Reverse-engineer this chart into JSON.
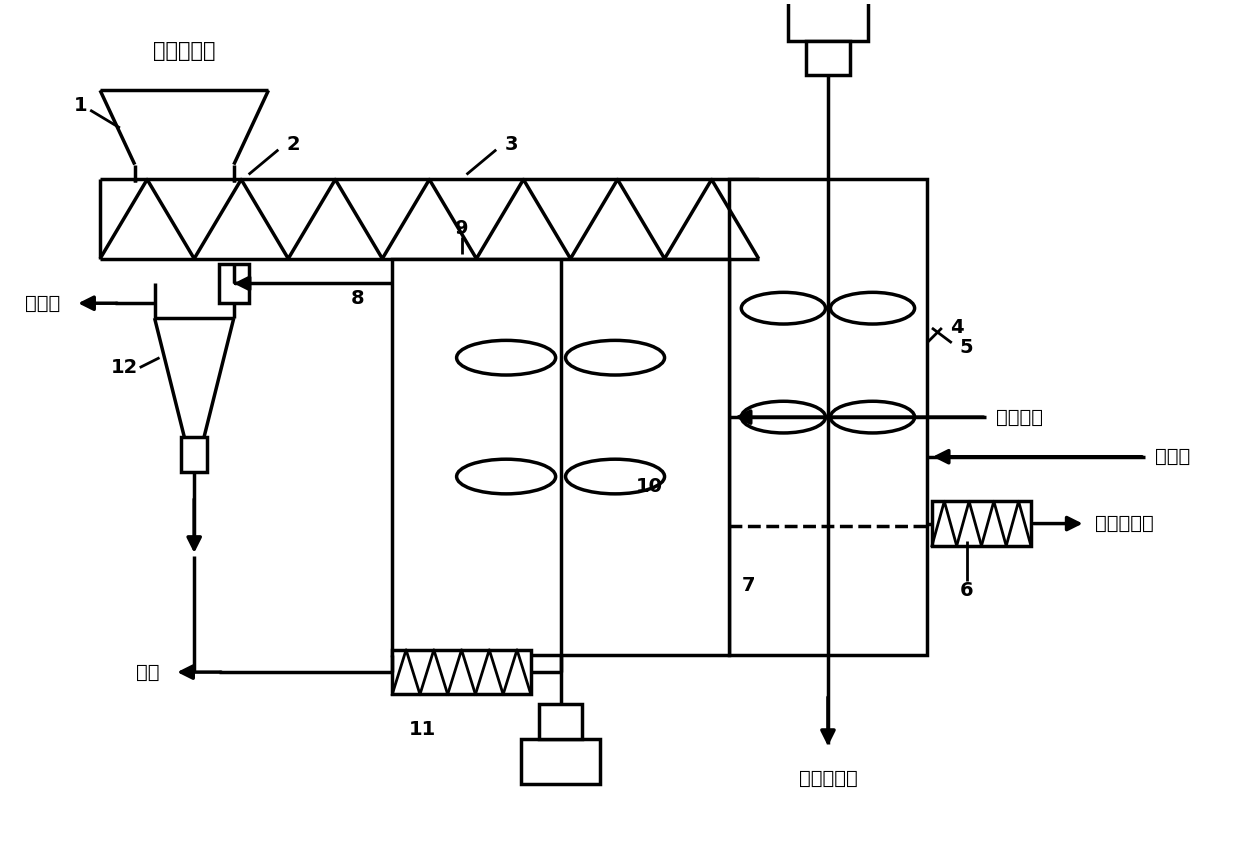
{
  "background": "#ffffff",
  "line_color": "#000000",
  "line_width": 2.5,
  "font_size": 14,
  "labels": {
    "biomass": "生物质原料",
    "syngas": "合成气",
    "working_gas": "工作气体",
    "activator": "活化剂",
    "granular_biochar": "颗粒生物炭",
    "powder_biochar": "粉状生物炭",
    "residue": "残渣"
  }
}
